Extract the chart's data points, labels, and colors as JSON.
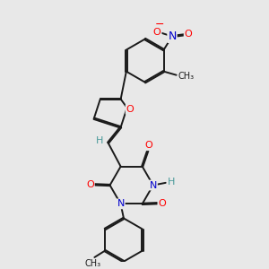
{
  "background_color": "#e8e8e8",
  "bond_color": "#1a1a1a",
  "atom_colors": {
    "O": "#ff0000",
    "N": "#0000cd",
    "H": "#4a9a9a",
    "C": "#1a1a1a"
  },
  "figsize": [
    3.0,
    3.0
  ],
  "dpi": 100,
  "lw": 1.4,
  "fs": 8.0
}
